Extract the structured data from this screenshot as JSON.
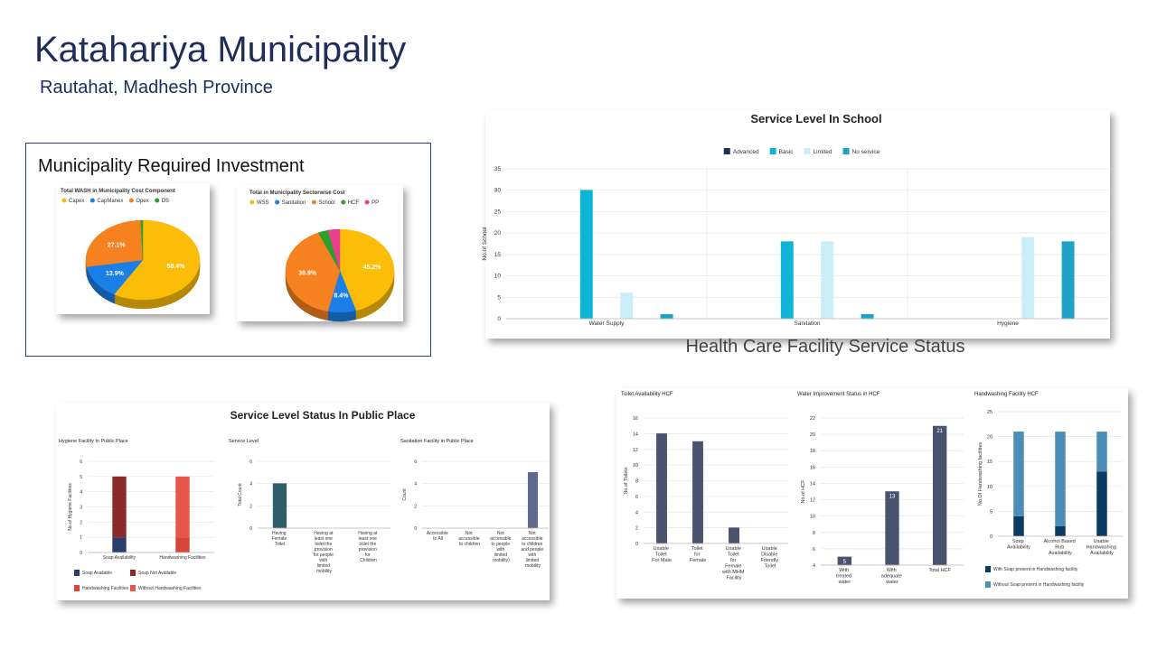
{
  "header": {
    "title": "Katahariya Municipality",
    "subtitle": "Rautahat, Madhesh Province"
  },
  "sections": {
    "investment": "Municipality Required Investment",
    "hcf": "Health Care Facility Service Status",
    "public": "Service Level Status In Public Place"
  },
  "chart_data": [
    {
      "type": "pie",
      "title": "Total WASH in Municipality Cost Component",
      "legend": "top",
      "categories": [
        "Capex",
        "CapManex",
        "Opex",
        "DS"
      ],
      "values": [
        58.4,
        13.9,
        27.1,
        0.6
      ],
      "value_labels": [
        "58.4%",
        "13.9%",
        "27.1%",
        null
      ],
      "colors": [
        "#fbbd08",
        "#1a7fe6",
        "#f5821f",
        "#2ca02c"
      ]
    },
    {
      "type": "pie",
      "title": "Total in Municipality Sectorwise Cost",
      "legend": "top",
      "categories": [
        "WSS",
        "Sanitation",
        "School",
        "HCF",
        "PP"
      ],
      "values": [
        45.2,
        8.4,
        39.9,
        3,
        3.5
      ],
      "value_labels": [
        "45.2%",
        "8.4%",
        "39.9%",
        null,
        null
      ],
      "colors": [
        "#fbbd08",
        "#1a7fe6",
        "#f5821f",
        "#2ca02c",
        "#e83e8c"
      ]
    },
    {
      "type": "bar",
      "title": "Service Level In School",
      "y_label": "No.of School",
      "legend": "top",
      "grid": true,
      "categories": [
        "Water Supply",
        "Sanitation",
        "Hygiene"
      ],
      "series": [
        {
          "name": "Advanced",
          "color": "#1f2f4f",
          "values": [
            0,
            0,
            0
          ]
        },
        {
          "name": "Basic",
          "color": "#0eb4d6",
          "values": [
            30,
            18,
            0
          ]
        },
        {
          "name": "Limited",
          "color": "#c9eef7",
          "values": [
            6,
            18,
            19
          ]
        },
        {
          "name": "No service",
          "color": "#1ea3c6",
          "values": [
            1,
            1,
            18
          ]
        }
      ],
      "ylim": [
        0,
        35
      ],
      "yticks": [
        0,
        5,
        10,
        15,
        20,
        25,
        30,
        35
      ]
    },
    {
      "type": "bar",
      "title": "Toilet Availability HCF",
      "y_label": "No.of Toilets",
      "grid": true,
      "categories": [
        "Usable Toilet For Male",
        "Toilet for Female",
        "Usable Toilet for Female with MHM Facility",
        "Usable Disable Friendly Toilet"
      ],
      "values": [
        14,
        13,
        2,
        0
      ],
      "color": "#4a5270",
      "ylim": [
        0,
        16
      ],
      "yticks": [
        0,
        2,
        4,
        6,
        8,
        10,
        12,
        14,
        16
      ]
    },
    {
      "type": "bar",
      "title": "Water Improvement Status in HCF",
      "y_label": "No.of HCF",
      "grid": true,
      "data_labels": true,
      "categories": [
        "With treated water",
        "With adequate water",
        "Total HCF"
      ],
      "values": [
        5,
        13,
        21
      ],
      "color": "#4a5270",
      "ylim": [
        4,
        22
      ],
      "yticks": [
        4,
        6,
        8,
        10,
        12,
        14,
        16,
        18,
        20,
        22
      ]
    },
    {
      "type": "bar",
      "title": "Handwashing Facility HCF",
      "y_label": "No.Of Handwashing facilities",
      "grid": true,
      "stacked": true,
      "legend": "bottom",
      "categories": [
        "Soap Availability",
        "Alcohol Based Rub Availability",
        "Usable Handwashing Availability"
      ],
      "series": [
        {
          "name": "With Soap present in Handwashing facility",
          "color": "#0b3a63",
          "values": [
            4,
            2,
            13
          ]
        },
        {
          "name": "Without Soap present in Handwashing facility",
          "color": "#4b8fb8",
          "values": [
            17,
            19,
            8
          ]
        }
      ],
      "ylim": [
        0,
        25
      ],
      "yticks": [
        0,
        5,
        10,
        15,
        20,
        25
      ]
    },
    {
      "type": "bar",
      "title": "Hygiene Facility In Public Place",
      "y_label": "No.of Hygiene Facilities",
      "grid": true,
      "stacked": true,
      "legend": "bottom",
      "categories": [
        "Soap Availability",
        "Handwashing Facilities"
      ],
      "series": [
        {
          "name": "Soap Available",
          "color": "#2c3e6b",
          "values": [
            1,
            0
          ]
        },
        {
          "name": "Soap Not Available",
          "color": "#8b2a2a",
          "values": [
            4,
            0
          ]
        },
        {
          "name": "Handwashing Facilities",
          "color": "#d9453b",
          "values": [
            0,
            1
          ]
        },
        {
          "name": "Without Handwashing Facilities",
          "color": "#e8554a",
          "values": [
            0,
            4
          ]
        }
      ],
      "ylim": [
        0,
        6
      ],
      "yticks": [
        0,
        1,
        2,
        3,
        4,
        5,
        6
      ]
    },
    {
      "type": "bar",
      "title": "Service Level",
      "y_label": "Total Count",
      "grid": true,
      "categories": [
        "Having Female Toilet",
        "Having at least one toilet the provision for people with limited mobility",
        "Having at least one toilet the provision for Children"
      ],
      "values": [
        4,
        0,
        0
      ],
      "color": "#2f5d6b",
      "ylim": [
        0,
        6
      ],
      "yticks": [
        0,
        2,
        4,
        6
      ]
    },
    {
      "type": "bar",
      "title": "Sanitation Facility in Public Place",
      "y_label": "Count",
      "grid": true,
      "categories": [
        "Accessible to All",
        "Not accessible to children",
        "Not accessible to people with limited mobility)",
        "Not accessible to children and people with limited mobility"
      ],
      "values": [
        0,
        0,
        0,
        5
      ],
      "color": "#5f6b8c",
      "ylim": [
        0,
        6
      ],
      "yticks": [
        0,
        2,
        4,
        6
      ]
    }
  ]
}
